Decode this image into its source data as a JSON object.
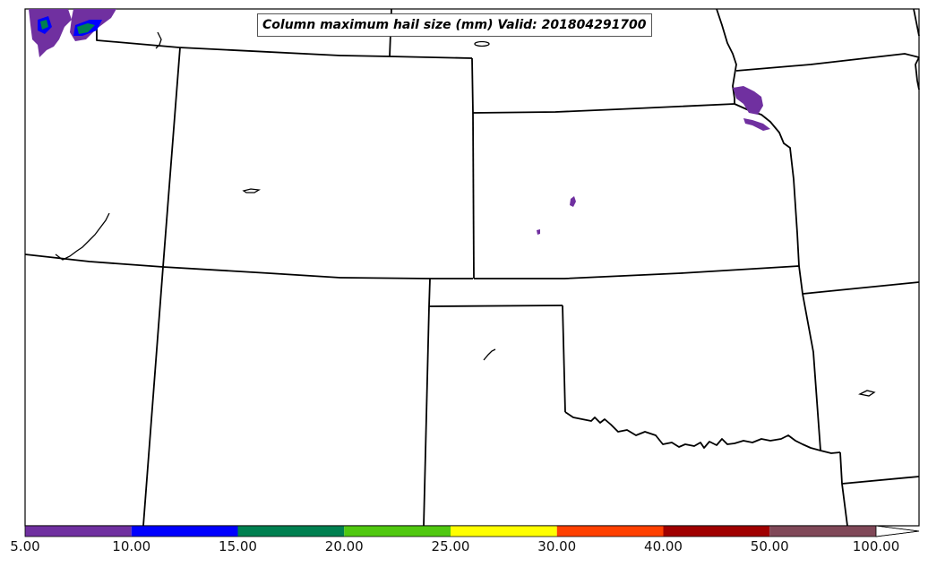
{
  "title": "Column maximum hail size (mm) Valid: 201804291700",
  "colorbar": {
    "labels": [
      "5.00",
      "10.00",
      "15.00",
      "20.00",
      "25.00",
      "30.00",
      "40.00",
      "50.00",
      "100.00"
    ],
    "colors": [
      "#7030a0",
      "#0000ff",
      "#008050",
      "#50c810",
      "#ffff00",
      "#ff4000",
      "#a00000",
      "#804858"
    ],
    "extend_max_color": "#ffffff"
  },
  "map": {
    "border_color": "#000000",
    "background": "#ffffff",
    "hail_colors": {
      "light": "#7030a0",
      "medium": "#0000ff",
      "strong": "#008050"
    }
  }
}
